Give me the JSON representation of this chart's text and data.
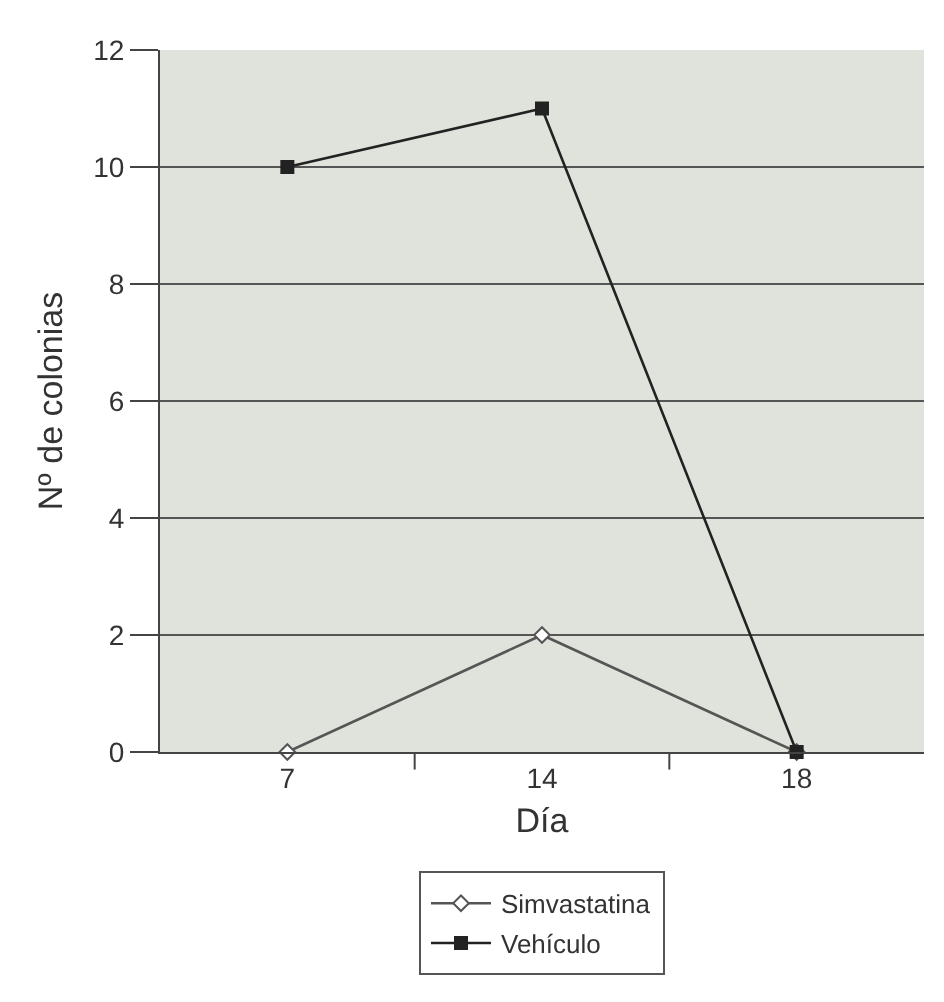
{
  "chart_data": {
    "type": "line",
    "xlabel": "Día",
    "ylabel": "Nº de colonias",
    "categories": [
      "7",
      "14",
      "18"
    ],
    "series": [
      {
        "name": "Simvastatina",
        "color": "#555555",
        "values": [
          0,
          2,
          0
        ],
        "marker": "diamond"
      },
      {
        "name": "Vehículo",
        "color": "#222222",
        "values": [
          10,
          11,
          0
        ],
        "marker": "square"
      }
    ],
    "ylim": [
      0,
      12
    ],
    "yticks": [
      0,
      2,
      4,
      6,
      8,
      10,
      12
    ],
    "grid": "y",
    "legend": "bottom",
    "line_style": "solid"
  }
}
